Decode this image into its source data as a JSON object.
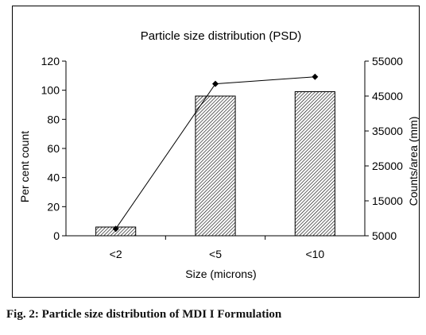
{
  "figure": {
    "caption": "Fig. 2: Particle size distribution of MDI I Formulation"
  },
  "chart_data": {
    "type": "bar",
    "title": "Particle size distribution (PSD)",
    "xlabel": "Size (microns)",
    "ylabel": "Per cent count",
    "y2label": "Counts/area (mm)",
    "categories": [
      "<2",
      "<5",
      "<10"
    ],
    "ylim": [
      0,
      120
    ],
    "yticks": [
      0,
      20,
      40,
      60,
      80,
      100,
      120
    ],
    "y2lim": [
      5000,
      55000
    ],
    "y2ticks": [
      5000,
      15000,
      25000,
      35000,
      45000,
      55000
    ],
    "series": [
      {
        "type": "bar",
        "axis": "left",
        "values": [
          6,
          96,
          99
        ]
      },
      {
        "type": "line",
        "axis": "right",
        "values": [
          7000,
          48500,
          50500
        ]
      }
    ],
    "grid": false,
    "bar_pattern": "diagonal-hatch"
  }
}
